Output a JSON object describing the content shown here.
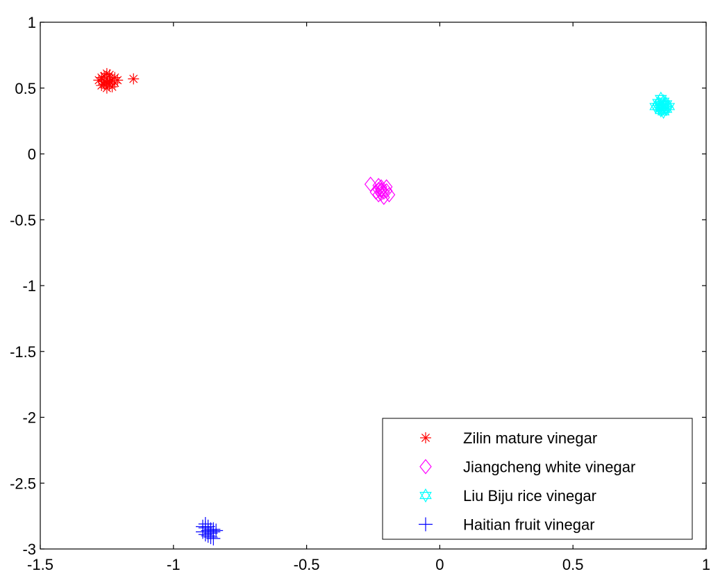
{
  "chart_data": {
    "type": "scatter",
    "title": "",
    "xlabel": "",
    "ylabel": "",
    "xlim": [
      -1.5,
      1
    ],
    "ylim": [
      -3,
      1
    ],
    "xticks": [
      -1.5,
      -1,
      -0.5,
      0,
      0.5,
      1
    ],
    "yticks": [
      -3,
      -2.5,
      -2,
      -1.5,
      -1,
      -0.5,
      0,
      0.5,
      1
    ],
    "xtick_labels": [
      "-1.5",
      "-1",
      "-0.5",
      "0",
      "0.5",
      "1"
    ],
    "ytick_labels": [
      "-3",
      "-2.5",
      "-2",
      "-1.5",
      "-1",
      "-0.5",
      "0",
      "0.5",
      "1"
    ],
    "grid": false,
    "legend_position": "bottom-right",
    "series": [
      {
        "name": "Zilin mature vinegar",
        "marker": "asterisk",
        "color": "#ff0000",
        "points": [
          [
            -1.26,
            0.55
          ],
          [
            -1.25,
            0.57
          ],
          [
            -1.24,
            0.53
          ],
          [
            -1.27,
            0.52
          ],
          [
            -1.25,
            0.5
          ],
          [
            -1.23,
            0.56
          ],
          [
            -1.26,
            0.59
          ],
          [
            -1.24,
            0.6
          ],
          [
            -1.28,
            0.56
          ],
          [
            -1.22,
            0.54
          ],
          [
            -1.25,
            0.54
          ],
          [
            -1.23,
            0.51
          ],
          [
            -1.27,
            0.58
          ],
          [
            -1.24,
            0.55
          ],
          [
            -1.26,
            0.53
          ],
          [
            -1.21,
            0.56
          ],
          [
            -1.25,
            0.61
          ],
          [
            -1.22,
            0.58
          ],
          [
            -1.15,
            0.57
          ]
        ]
      },
      {
        "name": "Jiangcheng white vinegar",
        "marker": "diamond",
        "color": "#ff00ff",
        "points": [
          [
            -0.22,
            -0.27
          ],
          [
            -0.21,
            -0.29
          ],
          [
            -0.23,
            -0.31
          ],
          [
            -0.22,
            -0.25
          ],
          [
            -0.2,
            -0.28
          ],
          [
            -0.24,
            -0.29
          ],
          [
            -0.21,
            -0.33
          ],
          [
            -0.23,
            -0.27
          ],
          [
            -0.2,
            -0.25
          ],
          [
            -0.22,
            -0.3
          ],
          [
            -0.19,
            -0.31
          ],
          [
            -0.23,
            -0.24
          ],
          [
            -0.22,
            -0.28
          ],
          [
            -0.26,
            -0.23
          ]
        ]
      },
      {
        "name": "Liu Biju rice vinegar",
        "marker": "hexagram",
        "color": "#00ffff",
        "points": [
          [
            0.83,
            0.37
          ],
          [
            0.84,
            0.35
          ],
          [
            0.82,
            0.36
          ],
          [
            0.85,
            0.38
          ],
          [
            0.83,
            0.33
          ],
          [
            0.84,
            0.4
          ],
          [
            0.82,
            0.39
          ],
          [
            0.85,
            0.34
          ],
          [
            0.83,
            0.42
          ],
          [
            0.84,
            0.32
          ],
          [
            0.81,
            0.36
          ],
          [
            0.86,
            0.36
          ],
          [
            0.83,
            0.35
          ],
          [
            0.84,
            0.37
          ]
        ]
      },
      {
        "name": "Haitian fruit vinegar",
        "marker": "plus",
        "color": "#0000ff",
        "points": [
          [
            -0.87,
            -2.86
          ],
          [
            -0.86,
            -2.88
          ],
          [
            -0.88,
            -2.84
          ],
          [
            -0.85,
            -2.87
          ],
          [
            -0.88,
            -2.81
          ],
          [
            -0.87,
            -2.9
          ],
          [
            -0.86,
            -2.85
          ],
          [
            -0.89,
            -2.87
          ],
          [
            -0.85,
            -2.92
          ],
          [
            -0.88,
            -2.89
          ],
          [
            -0.84,
            -2.86
          ],
          [
            -0.87,
            -2.83
          ],
          [
            -0.86,
            -2.91
          ],
          [
            -0.89,
            -2.83
          ],
          [
            -0.85,
            -2.85
          ]
        ]
      }
    ]
  }
}
